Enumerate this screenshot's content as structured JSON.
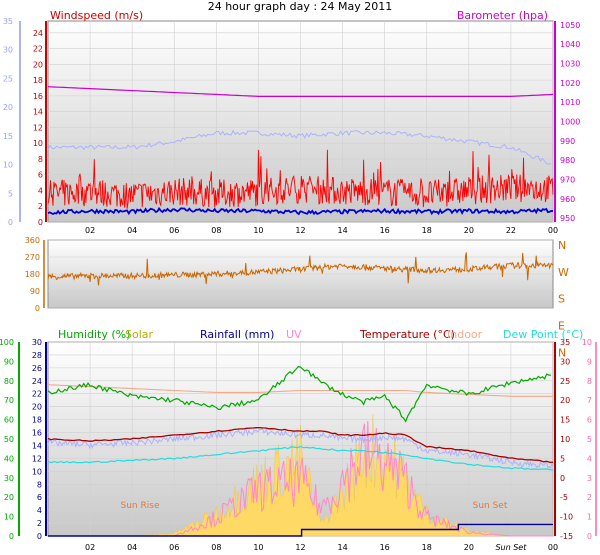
{
  "title": "24 hour graph day : 24 May 2011",
  "colors": {
    "wind_gust": "#ff0000",
    "wind_avg": "#0000dd",
    "wind_dir": "#cc6600",
    "barometer": "#cc00cc",
    "barometer_faint": "#aab2ff",
    "humidity": "#00aa00",
    "solar": "#ffd966",
    "solar_label": "#bbaa00",
    "rainfall": "#000099",
    "uv": "#ff88cc",
    "temperature": "#aa0000",
    "indoor": "#f4a98a",
    "dewpoint": "#22dddd",
    "temp_faint": "#aab2ff",
    "sun_label": "#e07a3a"
  },
  "chart_data": [
    {
      "type": "line",
      "panel": "wind",
      "title": "24 hour graph day : 24 May 2011",
      "legend_left": "Windspeed (m/s)",
      "legend_right": "Barometer (hpa)",
      "x_ticks": [
        "02",
        "04",
        "06",
        "08",
        "10",
        "12",
        "14",
        "16",
        "18",
        "20",
        "22",
        "00"
      ],
      "x": [
        0,
        2,
        4,
        6,
        8,
        10,
        12,
        14,
        16,
        18,
        20,
        22,
        24
      ],
      "y_left_ticks": [
        "0",
        "2",
        "4",
        "6",
        "8",
        "10",
        "12",
        "14",
        "16",
        "18",
        "20",
        "22",
        "24"
      ],
      "y_left_faint_ticks": [
        "0",
        "5",
        "10",
        "15",
        "20",
        "25",
        "30",
        "35"
      ],
      "y_right_ticks": [
        "950",
        "960",
        "970",
        "980",
        "990",
        "1000",
        "1010",
        "1020",
        "1030",
        "1040",
        "1050"
      ],
      "ylim_left": [
        0,
        25.5
      ],
      "ylim_right": [
        948,
        1052
      ],
      "series": [
        {
          "name": "Gust",
          "values": [
            3.5,
            3.8,
            3.4,
            3.9,
            3.6,
            3.8,
            4.2,
            3.9,
            3.8,
            3.5,
            4.0,
            4.3,
            4.2
          ]
        },
        {
          "name": "Average",
          "values": [
            1.2,
            1.4,
            1.3,
            1.6,
            1.4,
            1.4,
            1.2,
            1.3,
            1.4,
            1.3,
            1.4,
            1.3,
            1.5
          ]
        },
        {
          "name": "Barometer",
          "values": [
            1018,
            1017,
            1016,
            1015,
            1014,
            1013,
            1013,
            1013,
            1013,
            1013,
            1013,
            1013,
            1014
          ]
        },
        {
          "name": "Temperature (faint)",
          "values": [
            13,
            13,
            13,
            14,
            15.5,
            15.5,
            15,
            15.5,
            15.5,
            15,
            14,
            13,
            10
          ]
        }
      ]
    },
    {
      "type": "line",
      "panel": "direction",
      "x_ticks": [
        "02",
        "04",
        "06",
        "08",
        "10",
        "12",
        "14",
        "16",
        "18",
        "20",
        "22",
        "00"
      ],
      "y_left_ticks": [
        "0",
        "90",
        "180",
        "270",
        "360"
      ],
      "y_right_ticks": [
        "N",
        "W",
        "S",
        "E",
        "N"
      ],
      "ylim": [
        0,
        360
      ],
      "series": [
        {
          "name": "Wind direction",
          "x": [
            0,
            2,
            4,
            6,
            8,
            10,
            12,
            14,
            16,
            18,
            20,
            22,
            24
          ],
          "values": [
            165,
            170,
            170,
            175,
            180,
            190,
            205,
            225,
            210,
            200,
            205,
            225,
            225
          ]
        }
      ]
    },
    {
      "type": "line",
      "panel": "climate",
      "legend": [
        "Humidity (%)",
        "Solar",
        "Rainfall (mm)",
        "UV",
        "Temperature (°C)",
        "Indoor",
        "Dew Point (°C)"
      ],
      "x_ticks": [
        "02",
        "04",
        "06",
        "08",
        "10",
        "12",
        "14",
        "16",
        "18",
        "20",
        "Sun Set",
        "00"
      ],
      "annotations": [
        "Sun Rise",
        "Sun Set"
      ],
      "y_humidity_ticks": [
        "0",
        "10",
        "20",
        "30",
        "40",
        "50",
        "60",
        "70",
        "80",
        "90",
        "100"
      ],
      "y_rain_ticks": [
        "0",
        "2",
        "4",
        "6",
        "8",
        "10",
        "12",
        "14",
        "16",
        "18",
        "20",
        "22",
        "24",
        "26",
        "28",
        "30"
      ],
      "y_temp_ticks": [
        "-15",
        "-10",
        "-5",
        "0",
        "5",
        "10",
        "15",
        "20",
        "25",
        "30",
        "35"
      ],
      "y_uv_ticks": [
        "0",
        "1",
        "2",
        "3",
        "4",
        "5",
        "6",
        "7",
        "8",
        "9",
        "10"
      ],
      "x": [
        0,
        2,
        4,
        6,
        8,
        10,
        12,
        13,
        14,
        15,
        16,
        17,
        18,
        20,
        22,
        24
      ],
      "series": [
        {
          "name": "Humidity (%)",
          "values": [
            74,
            78,
            72,
            70,
            66,
            70,
            88,
            79,
            73,
            69,
            72,
            60,
            78,
            73,
            79,
            83
          ]
        },
        {
          "name": "Temperature (°C)",
          "values": [
            10,
            9.5,
            10,
            11,
            12,
            13,
            12,
            12,
            11,
            11,
            11.5,
            11,
            8,
            7,
            5,
            4
          ]
        },
        {
          "name": "Indoor",
          "values": [
            24,
            23.5,
            23,
            22.5,
            22,
            22,
            22.5,
            22.5,
            22.5,
            22.5,
            22.5,
            22.5,
            22,
            21.5,
            21,
            21
          ]
        },
        {
          "name": "Dew Point (°C)",
          "values": [
            4,
            4,
            4.5,
            5,
            6,
            7,
            8,
            7.5,
            7,
            7,
            6.5,
            6,
            5,
            3.5,
            2.5,
            2
          ]
        },
        {
          "name": "Rainfall (mm)",
          "values": [
            0,
            0,
            0,
            0,
            0,
            0,
            0.1,
            1.0,
            1.0,
            1.0,
            1.0,
            1.0,
            1.0,
            1.8,
            1.8,
            1.8
          ]
        },
        {
          "name": "Solar",
          "values": [
            0,
            0,
            0,
            0.5,
            4,
            10,
            14,
            2,
            8,
            15,
            16,
            10,
            4,
            1,
            0,
            0
          ]
        },
        {
          "name": "UV",
          "values": [
            0,
            0,
            0,
            0,
            1,
            2.5,
            3,
            1.5,
            3,
            4.5,
            4,
            3,
            1,
            0.2,
            0,
            0
          ]
        }
      ]
    }
  ]
}
